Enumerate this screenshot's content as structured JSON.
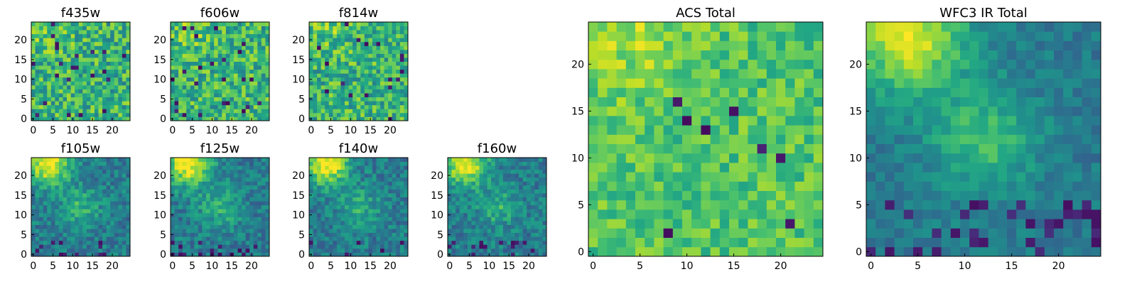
{
  "chart_data": [
    {
      "id": "f435w",
      "type": "heatmap",
      "title": "f435w",
      "grid_size": 25,
      "colormap": "viridis",
      "image_style": "noise",
      "xticks": [
        0,
        5,
        10,
        15,
        20
      ],
      "yticks": [
        0,
        5,
        10,
        15,
        20
      ],
      "xlim": [
        0,
        24
      ],
      "ylim": [
        0,
        24
      ]
    },
    {
      "id": "f606w",
      "type": "heatmap",
      "title": "f606w",
      "grid_size": 25,
      "colormap": "viridis",
      "image_style": "noise",
      "xticks": [
        0,
        5,
        10,
        15,
        20
      ],
      "yticks": [
        0,
        5,
        10,
        15,
        20
      ],
      "xlim": [
        0,
        24
      ],
      "ylim": [
        0,
        24
      ]
    },
    {
      "id": "f814w",
      "type": "heatmap",
      "title": "f814w",
      "grid_size": 25,
      "colormap": "viridis",
      "image_style": "noise",
      "xticks": [
        0,
        5,
        10,
        15,
        20
      ],
      "yticks": [
        0,
        5,
        10,
        15,
        20
      ],
      "xlim": [
        0,
        24
      ],
      "ylim": [
        0,
        24
      ]
    },
    {
      "id": "f105w",
      "type": "heatmap",
      "title": "f105w",
      "grid_size": 25,
      "colormap": "viridis",
      "image_style": "smooth",
      "xticks": [
        0,
        5,
        10,
        15,
        20
      ],
      "yticks": [
        0,
        5,
        10,
        15,
        20
      ],
      "xlim": [
        0,
        24
      ],
      "ylim": [
        0,
        24
      ]
    },
    {
      "id": "f125w",
      "type": "heatmap",
      "title": "f125w",
      "grid_size": 25,
      "colormap": "viridis",
      "image_style": "smooth",
      "xticks": [
        0,
        5,
        10,
        15,
        20
      ],
      "yticks": [
        0,
        5,
        10,
        15,
        20
      ],
      "xlim": [
        0,
        24
      ],
      "ylim": [
        0,
        24
      ]
    },
    {
      "id": "f140w",
      "type": "heatmap",
      "title": "f140w",
      "grid_size": 25,
      "colormap": "viridis",
      "image_style": "smooth",
      "xticks": [
        0,
        5,
        10,
        15,
        20
      ],
      "yticks": [
        0,
        5,
        10,
        15,
        20
      ],
      "xlim": [
        0,
        24
      ],
      "ylim": [
        0,
        24
      ]
    },
    {
      "id": "f160w",
      "type": "heatmap",
      "title": "f160w",
      "grid_size": 25,
      "colormap": "viridis",
      "image_style": "smooth",
      "xticks": [
        0,
        5,
        10,
        15,
        20
      ],
      "yticks": [
        0,
        5,
        10,
        15,
        20
      ],
      "xlim": [
        0,
        24
      ],
      "ylim": [
        0,
        24
      ]
    },
    {
      "id": "acs_total",
      "type": "heatmap",
      "title": "ACS Total",
      "grid_size": 25,
      "colormap": "viridis",
      "image_style": "acs",
      "xticks": [
        0,
        5,
        10,
        15,
        20
      ],
      "yticks": [
        0,
        5,
        10,
        15,
        20
      ],
      "xlim": [
        0,
        24
      ],
      "ylim": [
        0,
        24
      ]
    },
    {
      "id": "wfc3_ir_total",
      "type": "heatmap",
      "title": "WFC3 IR Total",
      "grid_size": 25,
      "colormap": "viridis",
      "image_style": "ir",
      "xticks": [
        0,
        5,
        10,
        15,
        20
      ],
      "yticks": [
        0,
        5,
        10,
        15,
        20
      ],
      "xlim": [
        0,
        24
      ],
      "ylim": [
        0,
        24
      ]
    }
  ]
}
